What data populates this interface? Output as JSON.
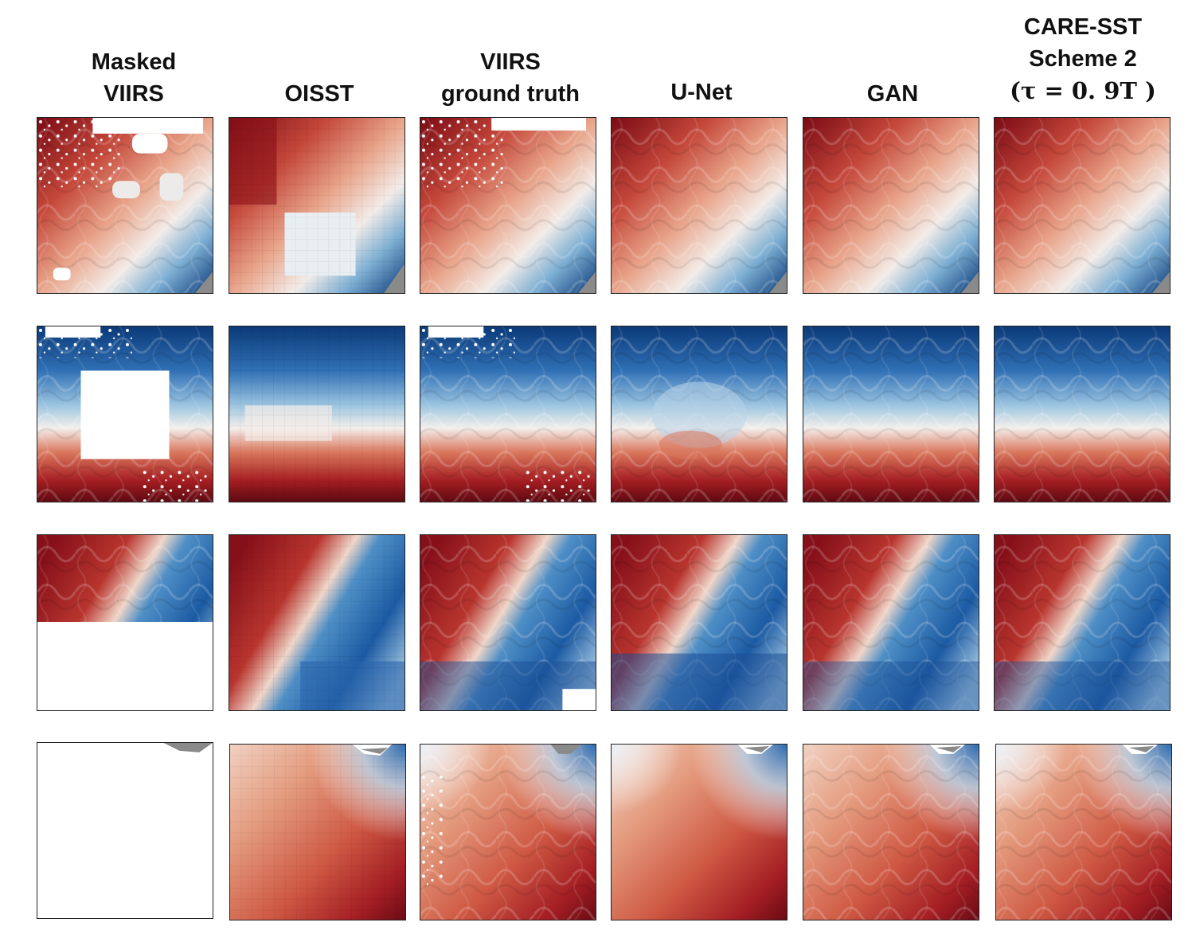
{
  "columns": [
    {
      "id": "masked",
      "lines": [
        "Masked",
        "VIIRS"
      ]
    },
    {
      "id": "oisst",
      "lines": [
        "OISST"
      ]
    },
    {
      "id": "truth",
      "lines": [
        "VIIRS",
        "ground truth"
      ]
    },
    {
      "id": "unet",
      "lines": [
        "U-Net"
      ]
    },
    {
      "id": "gan",
      "lines": [
        "GAN"
      ]
    },
    {
      "id": "care",
      "lines": [
        "CARE-SST",
        "Scheme 2",
        "(τ = 0. 9T )"
      ]
    }
  ],
  "colors": {
    "warm_dark": "#67000d",
    "warm": "#d6604d",
    "neutral": "#f7f7f7",
    "cool": "#4393c3",
    "cool_dark": "#053061",
    "land": "#8a8a8a",
    "mask": "#ffffff"
  },
  "rows": [
    {
      "id": "row-1",
      "pattern": "warm-northwest-cool-southeast",
      "masked": "scattered-clouds"
    },
    {
      "id": "row-2",
      "pattern": "cool-north-warm-south",
      "masked": "center-square"
    },
    {
      "id": "row-3",
      "pattern": "warm-west-cool-east-curved-front",
      "masked": "bottom-half"
    },
    {
      "id": "row-4",
      "pattern": "warm-dominant-cool-northeast",
      "masked": "full"
    }
  ]
}
